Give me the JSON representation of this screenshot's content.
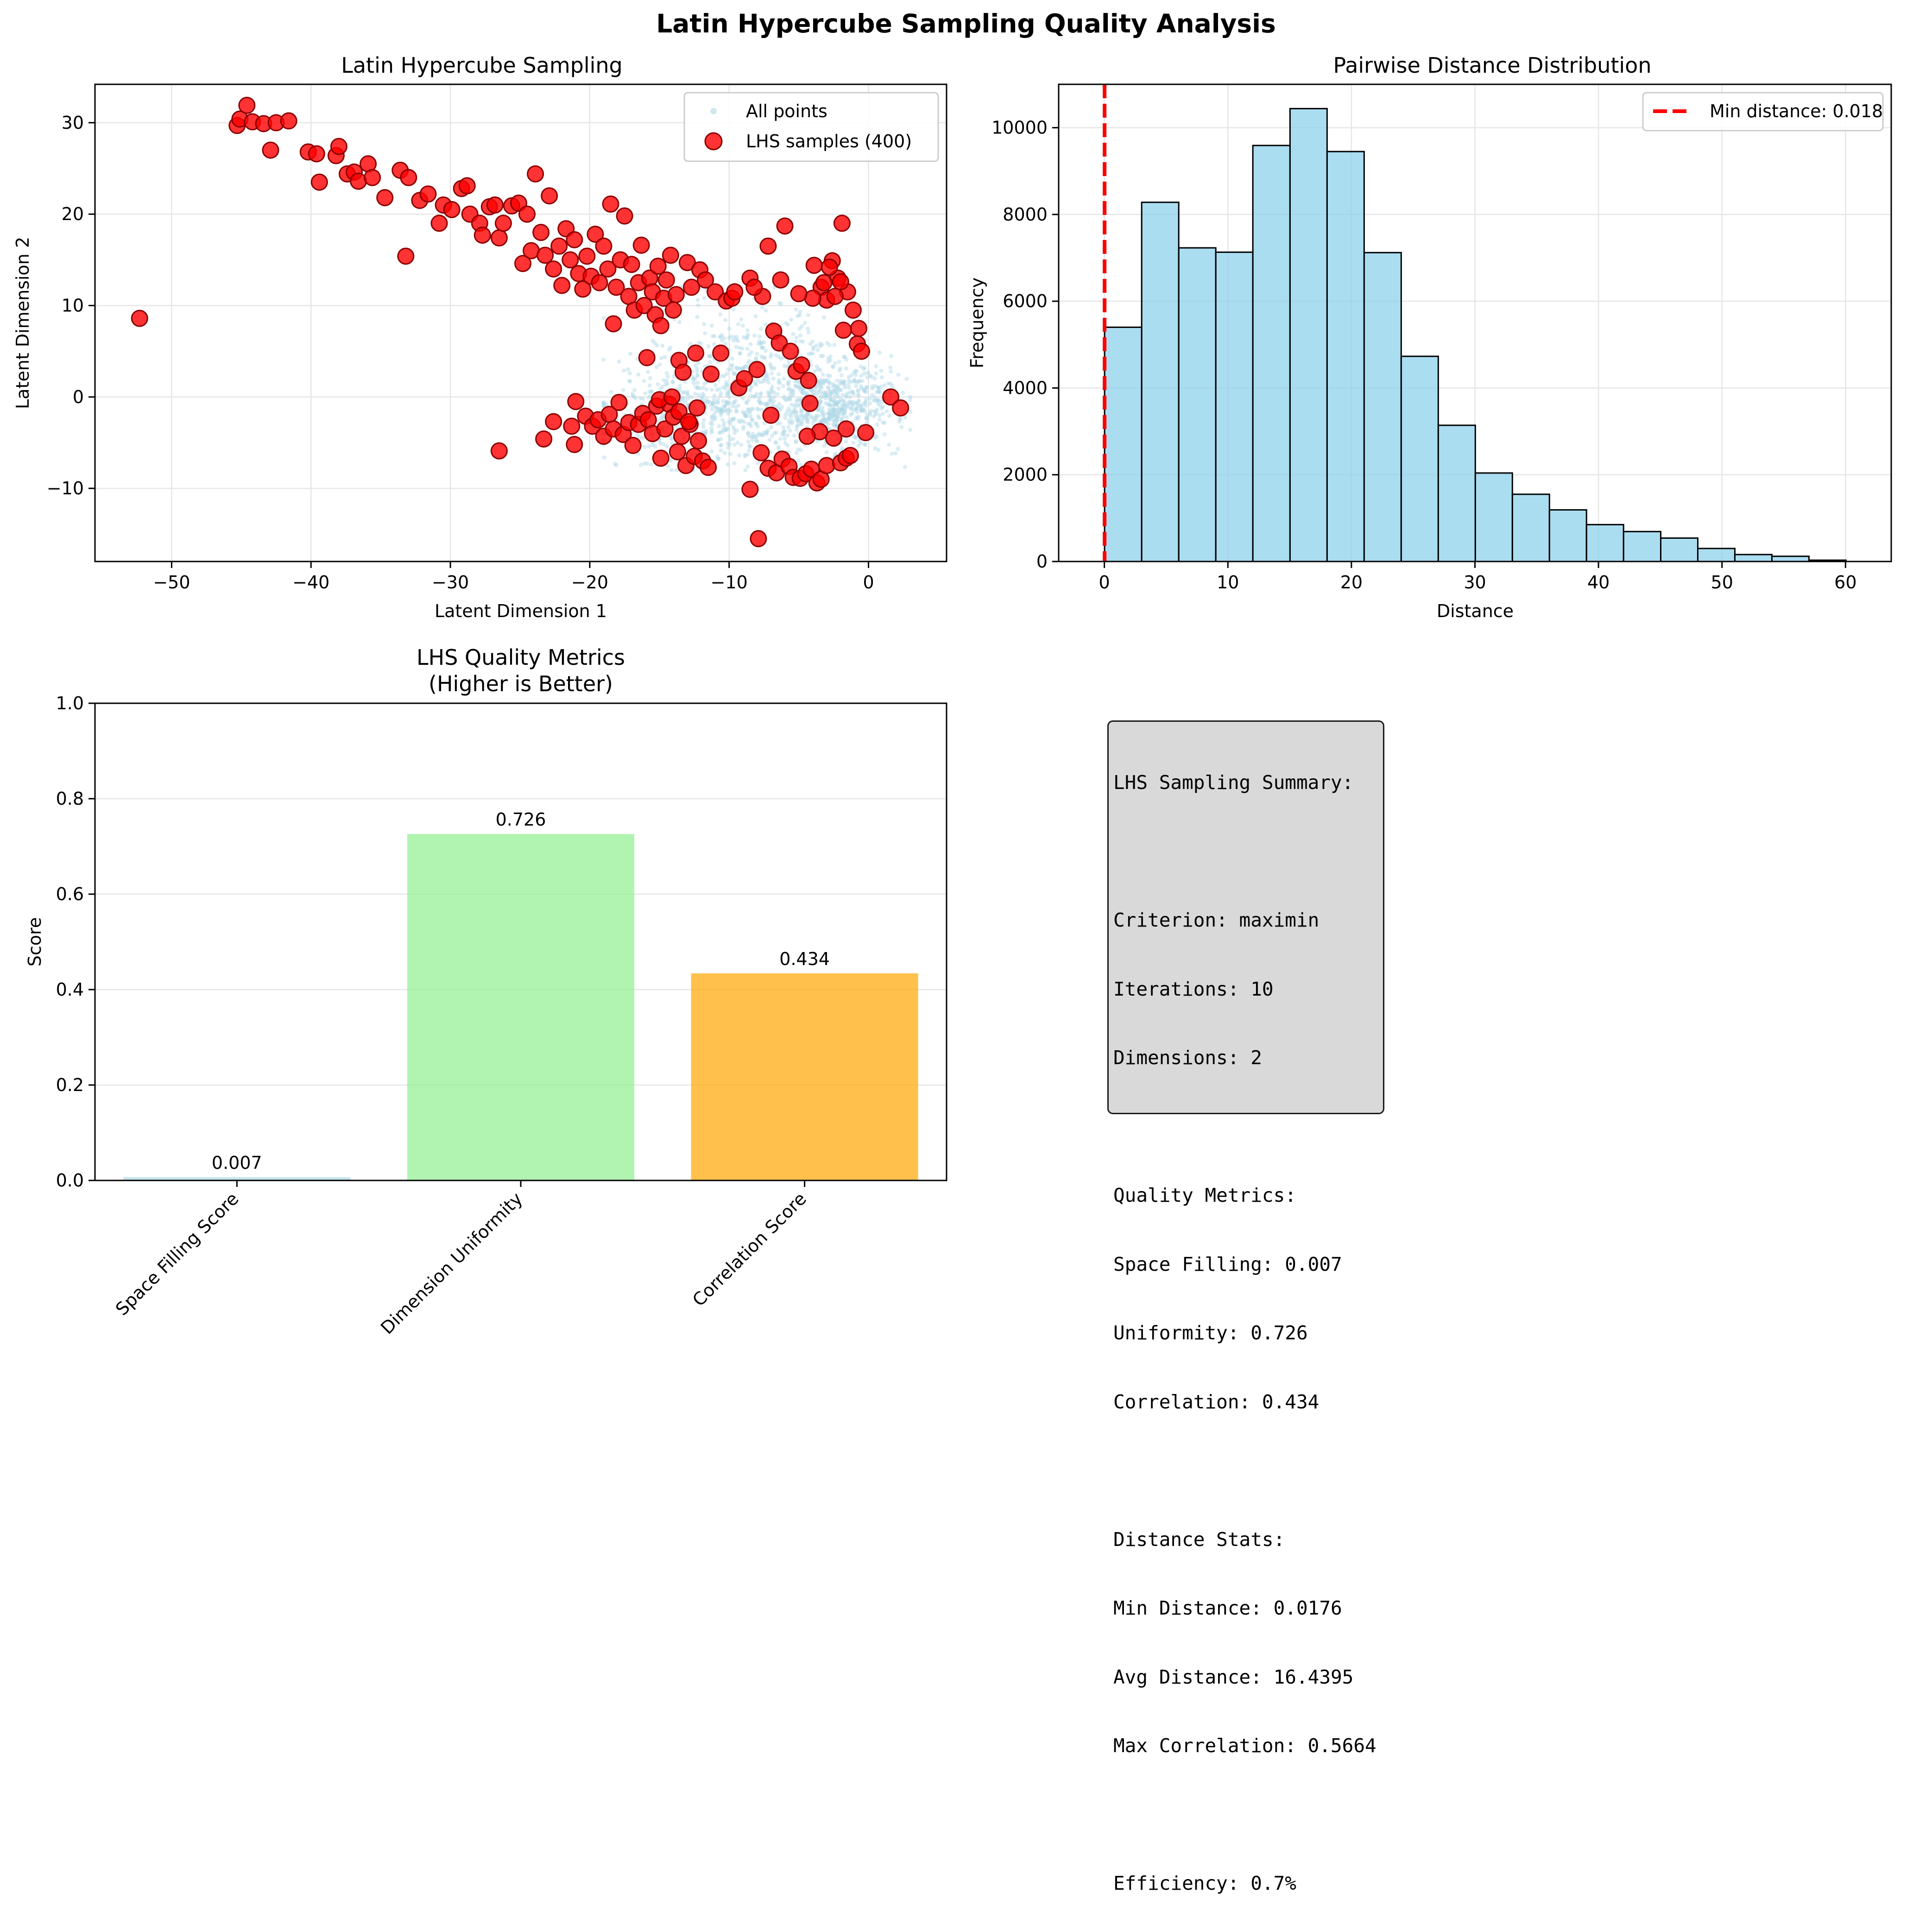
{
  "figure": {
    "title": "Latin Hypercube Sampling Quality Analysis"
  },
  "chart_data": [
    {
      "type": "scatter",
      "title": "Latin Hypercube Sampling",
      "xlabel": "Latent Dimension 1",
      "ylabel": "Latent Dimension 2",
      "xlim": [
        -55.5,
        5.6
      ],
      "ylim": [
        -18.0,
        34.2
      ],
      "xticks": [
        -50,
        -40,
        -30,
        -20,
        -10,
        0
      ],
      "yticks": [
        -10,
        0,
        10,
        20,
        30
      ],
      "grid": true,
      "legend_position": "top-right",
      "series": [
        {
          "name": "All points",
          "color": "#add8e6",
          "description_cloud": {
            "x_range": [
              -19,
              3
            ],
            "y_range": [
              -8,
              12
            ],
            "center": [
              -4,
              -1
            ]
          }
        },
        {
          "name": "LHS samples (400)",
          "color": "#ff0000",
          "points": [
            [
              -52.3,
              8.6
            ],
            [
              -45.3,
              29.7
            ],
            [
              -45.1,
              30.4
            ],
            [
              -44.6,
              31.9
            ],
            [
              -44.2,
              30.1
            ],
            [
              -43.4,
              29.9
            ],
            [
              -42.9,
              27.0
            ],
            [
              -42.5,
              30.0
            ],
            [
              -41.6,
              30.2
            ],
            [
              -40.2,
              26.8
            ],
            [
              -39.6,
              26.6
            ],
            [
              -39.4,
              23.5
            ],
            [
              -38.2,
              26.4
            ],
            [
              -38.0,
              27.4
            ],
            [
              -37.4,
              24.4
            ],
            [
              -36.9,
              24.6
            ],
            [
              -36.6,
              23.6
            ],
            [
              -35.9,
              25.5
            ],
            [
              -35.6,
              24.0
            ],
            [
              -34.7,
              21.8
            ],
            [
              -33.6,
              24.8
            ],
            [
              -33.2,
              15.4
            ],
            [
              -33.0,
              24.0
            ],
            [
              -32.2,
              21.5
            ],
            [
              -31.6,
              22.2
            ],
            [
              -30.8,
              19.0
            ],
            [
              -30.5,
              21.0
            ],
            [
              -29.9,
              20.5
            ],
            [
              -29.2,
              22.8
            ],
            [
              -28.8,
              23.1
            ],
            [
              -28.6,
              20.0
            ],
            [
              -27.9,
              19.0
            ],
            [
              -27.7,
              17.7
            ],
            [
              -27.2,
              20.8
            ],
            [
              -26.8,
              21.0
            ],
            [
              -26.5,
              17.4
            ],
            [
              -26.2,
              19.0
            ],
            [
              -25.6,
              20.9
            ],
            [
              -25.1,
              21.2
            ],
            [
              -24.8,
              14.6
            ],
            [
              -24.5,
              20.0
            ],
            [
              -24.2,
              16.0
            ],
            [
              -23.9,
              24.4
            ],
            [
              -23.5,
              18.0
            ],
            [
              -23.2,
              15.5
            ],
            [
              -22.9,
              22.0
            ],
            [
              -22.6,
              14.0
            ],
            [
              -22.2,
              16.5
            ],
            [
              -22.0,
              12.2
            ],
            [
              -21.7,
              18.4
            ],
            [
              -21.4,
              15.0
            ],
            [
              -21.1,
              17.2
            ],
            [
              -20.8,
              13.5
            ],
            [
              -20.5,
              11.8
            ],
            [
              -20.2,
              15.4
            ],
            [
              -19.9,
              13.2
            ],
            [
              -19.6,
              17.8
            ],
            [
              -19.3,
              12.5
            ],
            [
              -19.0,
              16.5
            ],
            [
              -18.7,
              14.0
            ],
            [
              -18.5,
              21.1
            ],
            [
              -18.3,
              8.0
            ],
            [
              -18.1,
              12.0
            ],
            [
              -17.8,
              15.0
            ],
            [
              -17.5,
              19.8
            ],
            [
              -17.2,
              11.0
            ],
            [
              -17.0,
              14.5
            ],
            [
              -16.8,
              9.5
            ],
            [
              -16.5,
              12.5
            ],
            [
              -16.3,
              16.6
            ],
            [
              -16.1,
              10.0
            ],
            [
              -15.9,
              4.3
            ],
            [
              -15.7,
              13.0
            ],
            [
              -15.5,
              11.5
            ],
            [
              -15.3,
              9.0
            ],
            [
              -15.1,
              14.3
            ],
            [
              -14.9,
              7.8
            ],
            [
              -14.7,
              10.8
            ],
            [
              -14.5,
              12.8
            ],
            [
              -14.2,
              15.5
            ],
            [
              -14.0,
              9.5
            ],
            [
              -13.8,
              11.2
            ],
            [
              -13.6,
              4.0
            ],
            [
              -13.3,
              2.7
            ],
            [
              -13.0,
              14.7
            ],
            [
              -12.7,
              12.0
            ],
            [
              -12.4,
              4.8
            ],
            [
              -12.1,
              13.9
            ],
            [
              -11.7,
              12.8
            ],
            [
              -11.3,
              2.5
            ],
            [
              -11.0,
              11.5
            ],
            [
              -10.6,
              4.8
            ],
            [
              -10.2,
              10.5
            ],
            [
              -9.8,
              10.8
            ],
            [
              -9.3,
              1.0
            ],
            [
              -8.9,
              2.0
            ],
            [
              -8.5,
              13.0
            ],
            [
              -8.0,
              3.0
            ],
            [
              -7.6,
              11.0
            ],
            [
              -7.2,
              16.5
            ],
            [
              -6.8,
              7.2
            ],
            [
              -6.4,
              5.9
            ],
            [
              -6.0,
              18.7
            ],
            [
              -5.6,
              5.0
            ],
            [
              -5.2,
              2.8
            ],
            [
              -4.8,
              3.5
            ],
            [
              -4.3,
              1.8
            ],
            [
              -3.9,
              14.4
            ],
            [
              -3.4,
              12.0
            ],
            [
              -3.0,
              10.6
            ],
            [
              -2.6,
              14.9
            ],
            [
              -2.2,
              13.0
            ],
            [
              -1.9,
              19.0
            ],
            [
              -1.5,
              11.5
            ],
            [
              -1.1,
              9.5
            ],
            [
              -0.8,
              5.8
            ],
            [
              -0.5,
              5.0
            ],
            [
              -0.7,
              7.5
            ],
            [
              -1.8,
              7.3
            ],
            [
              -2.8,
              14.2
            ],
            [
              -3.2,
              12.5
            ],
            [
              -4.0,
              10.8
            ],
            [
              -2.4,
              11.0
            ],
            [
              -2.0,
              12.6
            ],
            [
              -5.0,
              11.3
            ],
            [
              -6.3,
              12.8
            ],
            [
              -8.2,
              12.0
            ],
            [
              -9.6,
              11.5
            ],
            [
              -21.0,
              -0.5
            ],
            [
              -22.6,
              -2.7
            ],
            [
              -23.3,
              -4.6
            ],
            [
              -21.3,
              -3.2
            ],
            [
              -21.1,
              -5.2
            ],
            [
              -20.3,
              -2.1
            ],
            [
              -19.8,
              -3.2
            ],
            [
              -19.4,
              -2.5
            ],
            [
              -19.0,
              -4.3
            ],
            [
              -18.6,
              -1.9
            ],
            [
              -18.3,
              -3.5
            ],
            [
              -17.9,
              -0.6
            ],
            [
              -17.6,
              -4.1
            ],
            [
              -17.2,
              -2.8
            ],
            [
              -16.9,
              -5.3
            ],
            [
              -16.5,
              -3.0
            ],
            [
              -16.2,
              -1.8
            ],
            [
              -15.8,
              -2.5
            ],
            [
              -15.5,
              -4.0
            ],
            [
              -15.2,
              -1.0
            ],
            [
              -14.9,
              -6.7
            ],
            [
              -14.6,
              -3.5
            ],
            [
              -14.3,
              -0.8
            ],
            [
              -14.0,
              -2.2
            ],
            [
              -13.7,
              -6.0
            ],
            [
              -13.4,
              -4.3
            ],
            [
              -13.1,
              -7.5
            ],
            [
              -12.8,
              -3.0
            ],
            [
              -12.5,
              -6.5
            ],
            [
              -12.2,
              -4.8
            ],
            [
              -11.9,
              -7.0
            ],
            [
              -11.5,
              -7.7
            ],
            [
              -26.5,
              -5.9
            ],
            [
              -15.0,
              -0.3
            ],
            [
              -14.1,
              0.0
            ],
            [
              -13.6,
              -1.6
            ],
            [
              -12.9,
              -2.7
            ],
            [
              -12.3,
              -1.2
            ],
            [
              -8.5,
              -10.1
            ],
            [
              -7.9,
              -15.5
            ],
            [
              -7.7,
              -6.1
            ],
            [
              -7.2,
              -7.8
            ],
            [
              -6.6,
              -8.3
            ],
            [
              -6.2,
              -6.8
            ],
            [
              -5.7,
              -7.6
            ],
            [
              -5.4,
              -8.8
            ],
            [
              -4.9,
              -8.9
            ],
            [
              -4.5,
              -8.4
            ],
            [
              -4.1,
              -7.9
            ],
            [
              -3.7,
              -9.4
            ],
            [
              -3.4,
              -9.0
            ],
            [
              -3.0,
              -7.5
            ],
            [
              -2.5,
              -4.5
            ],
            [
              -2.0,
              -7.2
            ],
            [
              -1.6,
              -6.7
            ],
            [
              -1.3,
              -6.4
            ],
            [
              -1.6,
              -3.5
            ],
            [
              -3.5,
              -3.8
            ],
            [
              -4.4,
              -4.3
            ],
            [
              -4.2,
              -0.7
            ],
            [
              -7.0,
              -2.0
            ],
            [
              -0.2,
              -3.9
            ],
            [
              1.6,
              0.0
            ],
            [
              2.3,
              -1.2
            ]
          ]
        }
      ]
    },
    {
      "type": "bar",
      "title": "Pairwise Distance Distribution",
      "xlabel": "Distance",
      "ylabel": "Frequency",
      "xlim": [
        -3.7,
        63.7
      ],
      "ylim": [
        0,
        11000
      ],
      "xticks": [
        0,
        10,
        20,
        30,
        40,
        50,
        60
      ],
      "yticks": [
        0,
        2000,
        4000,
        6000,
        8000,
        10000
      ],
      "grid": true,
      "legend_position": "top-right",
      "bin_edges": [
        0.018,
        3.02,
        6.02,
        9.02,
        12.02,
        15.03,
        18.03,
        21.03,
        24.03,
        27.03,
        30.03,
        33.03,
        36.03,
        39.03,
        42.03,
        45.04,
        48.04,
        51.04,
        54.04,
        57.04,
        60.04
      ],
      "values": [
        5400,
        8280,
        7230,
        7130,
        9590,
        10440,
        9450,
        7120,
        4730,
        3140,
        2040,
        1550,
        1190,
        850,
        690,
        540,
        300,
        160,
        120,
        30
      ],
      "bar_color": "#87ceeb",
      "reference_line": {
        "label": "Min distance: 0.018",
        "x": 0.018,
        "color": "#ff0000"
      }
    },
    {
      "type": "bar",
      "title_line1": "LHS Quality Metrics",
      "title_line2": "(Higher is Better)",
      "ylabel": "Score",
      "ylim": [
        0,
        1.0
      ],
      "yticks": [
        "0.0",
        "0.2",
        "0.4",
        "0.6",
        "0.8",
        "1.0"
      ],
      "grid": true,
      "categories": [
        "Space Filling Score",
        "Dimension Uniformity",
        "Correlation Score"
      ],
      "values": [
        0.007,
        0.726,
        0.434
      ],
      "value_labels": [
        "0.007",
        "0.726",
        "0.434"
      ],
      "colors": [
        "#add8e6",
        "#90ee90",
        "#ffa500"
      ]
    }
  ],
  "summary": {
    "lines": [
      "LHS Sampling Summary:",
      "",
      "Criterion: maximin",
      "Iterations: 10",
      "Dimensions: 2",
      "",
      "Quality Metrics:",
      "Space Filling: 0.007",
      "Uniformity: 0.726",
      "Correlation: 0.434",
      "",
      "Distance Stats:",
      "Min Distance: 0.0176",
      "Avg Distance: 16.4395",
      "Max Correlation: 0.5664",
      "",
      "Efficiency: 0.7%"
    ]
  }
}
